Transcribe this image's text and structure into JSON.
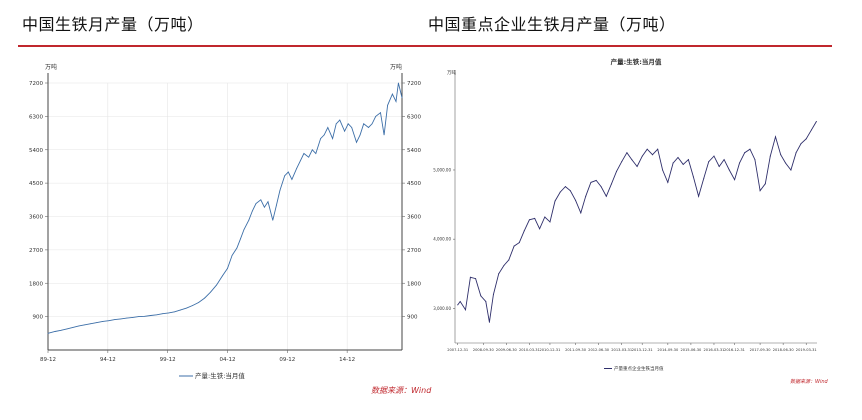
{
  "titles": {
    "left": "中国生铁月产量（万吨）",
    "right": "中国重点企业生铁月产量（万吨）"
  },
  "source_left": "数据来源：Wind",
  "source_right": "数据来源：Wind",
  "colors": {
    "rule": "#c0272d",
    "left_series": "#3d6fa8",
    "right_series": "#2f2f6b",
    "source": "#c0272d"
  },
  "chart_data": [
    {
      "type": "line",
      "title": "",
      "y_unit_left": "万吨",
      "y_unit_right": "万吨",
      "ylim": [
        0,
        7200
      ],
      "yticks": [
        900,
        1800,
        2700,
        3600,
        4500,
        5400,
        6300,
        7200
      ],
      "xlim": [
        1989.917,
        2019.5
      ],
      "xticks": [
        {
          "x": 1989.917,
          "label": "89-12"
        },
        {
          "x": 1994.917,
          "label": "94-12"
        },
        {
          "x": 1999.917,
          "label": "99-12"
        },
        {
          "x": 2004.917,
          "label": "04-12"
        },
        {
          "x": 2009.917,
          "label": "09-12"
        },
        {
          "x": 2014.917,
          "label": "14-12"
        }
      ],
      "grid": true,
      "legend": "bottom-center",
      "series": [
        {
          "name": "产量:生铁:当月值",
          "points": [
            [
              1989.917,
              450
            ],
            [
              1990.5,
              500
            ],
            [
              1991,
              530
            ],
            [
              1991.5,
              570
            ],
            [
              1992,
              610
            ],
            [
              1992.5,
              650
            ],
            [
              1993,
              680
            ],
            [
              1993.5,
              710
            ],
            [
              1994,
              740
            ],
            [
              1994.5,
              770
            ],
            [
              1995,
              790
            ],
            [
              1995.5,
              820
            ],
            [
              1996,
              840
            ],
            [
              1996.5,
              860
            ],
            [
              1997,
              880
            ],
            [
              1997.5,
              900
            ],
            [
              1998,
              910
            ],
            [
              1998.5,
              930
            ],
            [
              1999,
              950
            ],
            [
              1999.5,
              980
            ],
            [
              2000,
              1000
            ],
            [
              2000.5,
              1030
            ],
            [
              2001,
              1080
            ],
            [
              2001.5,
              1130
            ],
            [
              2002,
              1200
            ],
            [
              2002.5,
              1280
            ],
            [
              2003,
              1400
            ],
            [
              2003.5,
              1560
            ],
            [
              2004,
              1750
            ],
            [
              2004.5,
              2000
            ],
            [
              2004.917,
              2200
            ],
            [
              2005.3,
              2550
            ],
            [
              2005.7,
              2750
            ],
            [
              2006,
              3000
            ],
            [
              2006.3,
              3250
            ],
            [
              2006.7,
              3500
            ],
            [
              2007,
              3750
            ],
            [
              2007.3,
              3950
            ],
            [
              2007.7,
              4050
            ],
            [
              2008,
              3850
            ],
            [
              2008.3,
              4000
            ],
            [
              2008.7,
              3500
            ],
            [
              2009,
              3900
            ],
            [
              2009.3,
              4300
            ],
            [
              2009.7,
              4700
            ],
            [
              2010,
              4800
            ],
            [
              2010.3,
              4600
            ],
            [
              2010.7,
              4900
            ],
            [
              2011,
              5100
            ],
            [
              2011.3,
              5300
            ],
            [
              2011.7,
              5200
            ],
            [
              2012,
              5400
            ],
            [
              2012.3,
              5300
            ],
            [
              2012.7,
              5700
            ],
            [
              2013,
              5800
            ],
            [
              2013.3,
              6000
            ],
            [
              2013.7,
              5700
            ],
            [
              2014,
              6100
            ],
            [
              2014.3,
              6200
            ],
            [
              2014.7,
              5900
            ],
            [
              2015,
              6100
            ],
            [
              2015.3,
              6000
            ],
            [
              2015.7,
              5600
            ],
            [
              2016,
              5800
            ],
            [
              2016.3,
              6100
            ],
            [
              2016.7,
              6000
            ],
            [
              2017,
              6100
            ],
            [
              2017.3,
              6300
            ],
            [
              2017.7,
              6400
            ],
            [
              2018,
              5800
            ],
            [
              2018.3,
              6600
            ],
            [
              2018.7,
              6900
            ],
            [
              2019,
              6700
            ],
            [
              2019.2,
              7200
            ],
            [
              2019.5,
              6800
            ]
          ]
        }
      ]
    },
    {
      "type": "line",
      "title": "产量:生铁:当月值",
      "y_unit_left": "万吨",
      "ylim": [
        2500,
        6300
      ],
      "yticks": [
        3000,
        4000,
        5000
      ],
      "ytick_labels": [
        "3,000.00",
        "4,000.00",
        "5,000.00"
      ],
      "xlim": [
        2007.83,
        2019.6
      ],
      "xticks": [
        {
          "x": 2007.917,
          "label": "2007-12-31"
        },
        {
          "x": 2008.75,
          "label": "2008-09-30"
        },
        {
          "x": 2009.5,
          "label": "2009-06-30"
        },
        {
          "x": 2010.25,
          "label": "2010-03-31"
        },
        {
          "x": 2010.917,
          "label": "2010-12-31"
        },
        {
          "x": 2011.75,
          "label": "2011-09-30"
        },
        {
          "x": 2012.5,
          "label": "2012-06-30"
        },
        {
          "x": 2013.25,
          "label": "2013-03-31"
        },
        {
          "x": 2013.917,
          "label": "2013-12-31"
        },
        {
          "x": 2014.75,
          "label": "2014-09-30"
        },
        {
          "x": 2015.5,
          "label": "2015-06-30"
        },
        {
          "x": 2016.25,
          "label": "2016-03-31"
        },
        {
          "x": 2016.917,
          "label": "2016-12-31"
        },
        {
          "x": 2017.75,
          "label": "2017-09-30"
        },
        {
          "x": 2018.5,
          "label": "2018-06-30"
        },
        {
          "x": 2019.25,
          "label": "2019-03-31"
        }
      ],
      "grid": false,
      "legend": "bottom-center",
      "series": [
        {
          "name": "产量重点企业生铁当月值",
          "points": [
            [
              2007.917,
              3050
            ],
            [
              2008.0,
              3100
            ],
            [
              2008.17,
              2980
            ],
            [
              2008.33,
              3450
            ],
            [
              2008.5,
              3430
            ],
            [
              2008.67,
              3180
            ],
            [
              2008.83,
              3100
            ],
            [
              2008.95,
              2800
            ],
            [
              2009.08,
              3200
            ],
            [
              2009.25,
              3500
            ],
            [
              2009.42,
              3620
            ],
            [
              2009.58,
              3700
            ],
            [
              2009.75,
              3900
            ],
            [
              2009.92,
              3950
            ],
            [
              2010.08,
              4120
            ],
            [
              2010.25,
              4280
            ],
            [
              2010.42,
              4300
            ],
            [
              2010.58,
              4150
            ],
            [
              2010.75,
              4320
            ],
            [
              2010.92,
              4250
            ],
            [
              2011.08,
              4550
            ],
            [
              2011.25,
              4680
            ],
            [
              2011.42,
              4760
            ],
            [
              2011.58,
              4700
            ],
            [
              2011.75,
              4560
            ],
            [
              2011.92,
              4380
            ],
            [
              2012.08,
              4620
            ],
            [
              2012.25,
              4820
            ],
            [
              2012.42,
              4850
            ],
            [
              2012.58,
              4760
            ],
            [
              2012.75,
              4620
            ],
            [
              2012.92,
              4800
            ],
            [
              2013.08,
              4980
            ],
            [
              2013.25,
              5120
            ],
            [
              2013.42,
              5250
            ],
            [
              2013.58,
              5150
            ],
            [
              2013.75,
              5050
            ],
            [
              2013.92,
              5200
            ],
            [
              2014.08,
              5300
            ],
            [
              2014.25,
              5220
            ],
            [
              2014.42,
              5300
            ],
            [
              2014.58,
              5000
            ],
            [
              2014.75,
              4820
            ],
            [
              2014.92,
              5100
            ],
            [
              2015.08,
              5180
            ],
            [
              2015.25,
              5080
            ],
            [
              2015.42,
              5150
            ],
            [
              2015.58,
              4900
            ],
            [
              2015.75,
              4620
            ],
            [
              2015.92,
              4880
            ],
            [
              2016.08,
              5120
            ],
            [
              2016.25,
              5200
            ],
            [
              2016.42,
              5050
            ],
            [
              2016.58,
              5150
            ],
            [
              2016.75,
              5000
            ],
            [
              2016.92,
              4860
            ],
            [
              2017.08,
              5100
            ],
            [
              2017.25,
              5250
            ],
            [
              2017.42,
              5300
            ],
            [
              2017.58,
              5150
            ],
            [
              2017.75,
              4700
            ],
            [
              2017.92,
              4800
            ],
            [
              2018.08,
              5200
            ],
            [
              2018.25,
              5480
            ],
            [
              2018.42,
              5220
            ],
            [
              2018.58,
              5100
            ],
            [
              2018.75,
              5000
            ],
            [
              2018.92,
              5250
            ],
            [
              2019.08,
              5380
            ],
            [
              2019.25,
              5450
            ],
            [
              2019.42,
              5580
            ],
            [
              2019.58,
              5700
            ]
          ]
        }
      ]
    }
  ]
}
